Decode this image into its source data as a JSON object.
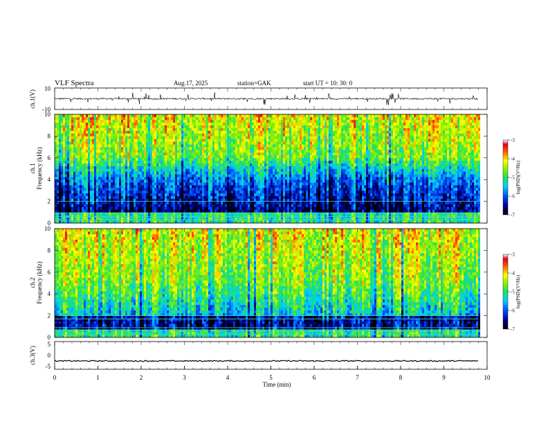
{
  "header": {
    "title": "VLF  Spectra",
    "date": "Aug.17, 2025",
    "station": "station=GAK",
    "start": "start  UT  =   10: 30: 0"
  },
  "chart_data": [
    {
      "type": "line",
      "panel": "ch1-waveform",
      "ylabel": "ch.1(V)",
      "ylim": [
        -10,
        10
      ],
      "yticks": [
        "10",
        "-10"
      ],
      "baseline": 0,
      "xlim": [
        0,
        10
      ],
      "x_unit": "min"
    },
    {
      "type": "heatmap",
      "panel": "ch1-spectrogram",
      "ylabel_line1": "ch.1",
      "ylabel_line2": "Frequency  (kHz)",
      "ylim": [
        0,
        10
      ],
      "yticks": [
        "0",
        "2",
        "4",
        "6",
        "8",
        "10"
      ],
      "xlim": [
        0,
        10
      ],
      "data_end_min": 9.8,
      "colorbar": {
        "label": "log(PSD)(V²/Hz)",
        "range": [
          -7,
          -3
        ],
        "ticks": [
          "-3",
          "-4",
          "-5",
          "-6",
          "-7"
        ]
      }
    },
    {
      "type": "heatmap",
      "panel": "ch2-spectrogram",
      "ylabel_line1": "ch.2",
      "ylabel_line2": "Frequency  (kHz)",
      "ylim": [
        0,
        10
      ],
      "yticks": [
        "0",
        "2",
        "4",
        "6",
        "8",
        "10"
      ],
      "xlim": [
        0,
        10
      ],
      "data_end_min": 9.8,
      "colorbar": {
        "label": "log(PSD)(V²/Hz)",
        "range": [
          -7,
          -3
        ],
        "ticks": [
          "-3",
          "-4",
          "-5",
          "-6",
          "-7"
        ]
      }
    },
    {
      "type": "line",
      "panel": "ch3-waveform",
      "ylabel": "ch.3(V)",
      "ylim": [
        -5,
        5
      ],
      "yticks": [
        "5",
        "0",
        "-5"
      ],
      "baseline": -2,
      "xlim": [
        0,
        10
      ],
      "xlabel": "Time  (min)",
      "xticks": [
        "0",
        "1",
        "2",
        "3",
        "4",
        "5",
        "6",
        "7",
        "8",
        "9",
        "10"
      ]
    }
  ]
}
